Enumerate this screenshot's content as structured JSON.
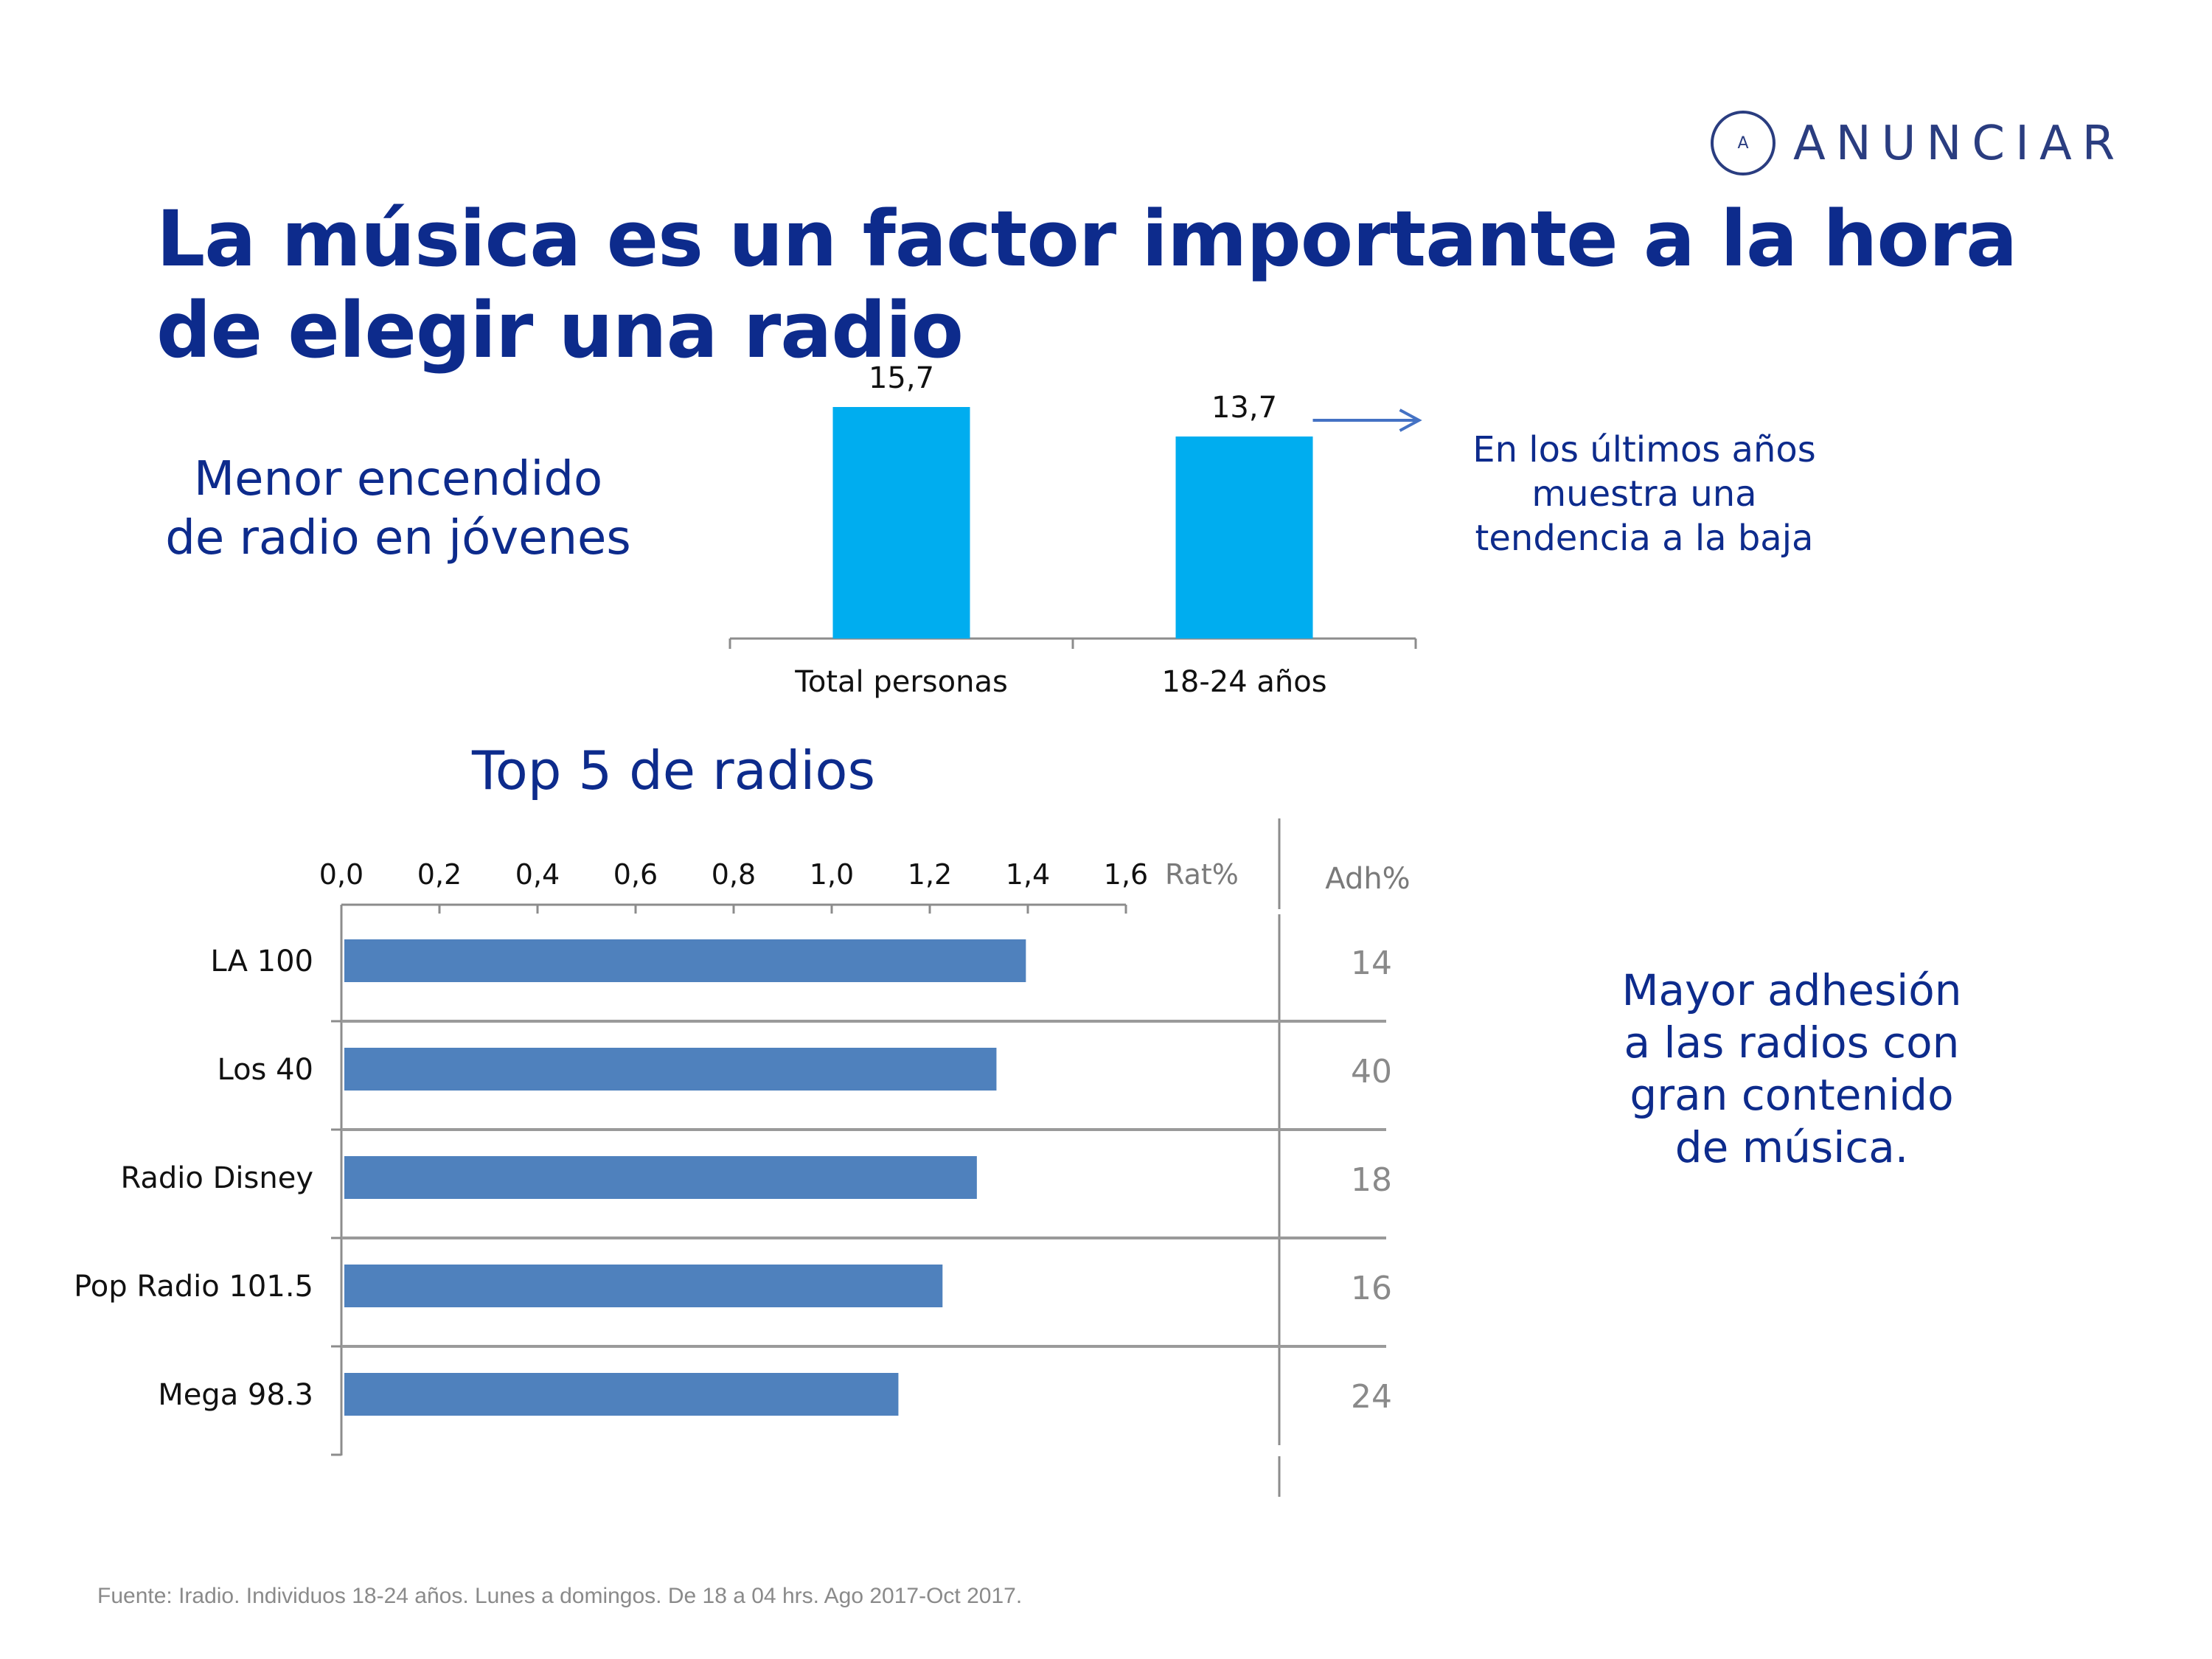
{
  "logo": {
    "mark": "A",
    "text": "ANUNCIAR"
  },
  "title": "La música es un factor importante a la hora de elegir una radio",
  "left_callout": "Menor encendido de radio en jóvenes",
  "trend_callout": "En los últimos años muestra una tendencia a la baja",
  "section_title": "Top 5 de radios",
  "right_callout": "Mayor adhesión a las radios con gran contenido de música.",
  "footnote": "Fuente: Iradio. Individuos 18-24 años. Lunes a domingos. De 18 a 04 hrs. Ago 2017-Oct 2017.",
  "colors": {
    "navy": "#0d2b8c",
    "column": "#00adef",
    "bar": "#4f81bd",
    "axis": "#8c8c8c"
  },
  "chart_data": [
    {
      "type": "bar",
      "orientation": "vertical",
      "categories": [
        "Total personas",
        "18-24 años"
      ],
      "values": [
        15.7,
        13.7
      ],
      "labels": [
        "15,7",
        "13,7"
      ],
      "ylim": [
        0,
        16.5
      ]
    },
    {
      "type": "bar",
      "orientation": "horizontal",
      "title": "Top 5 de radios",
      "xlabel": "Rat%",
      "xlim": [
        0,
        1.6
      ],
      "xticks": [
        "0,0",
        "0,2",
        "0,4",
        "0,6",
        "0,8",
        "1,0",
        "1,2",
        "1,4",
        "1,6"
      ],
      "categories": [
        "LA 100",
        "Los 40",
        "Radio Disney",
        "Pop Radio 101.5",
        "Mega 98.3"
      ],
      "values": [
        1.39,
        1.33,
        1.29,
        1.22,
        1.13
      ],
      "extra_column": {
        "header": "Adh%",
        "values": [
          "14",
          "40",
          "18",
          "16",
          "24"
        ]
      }
    }
  ]
}
